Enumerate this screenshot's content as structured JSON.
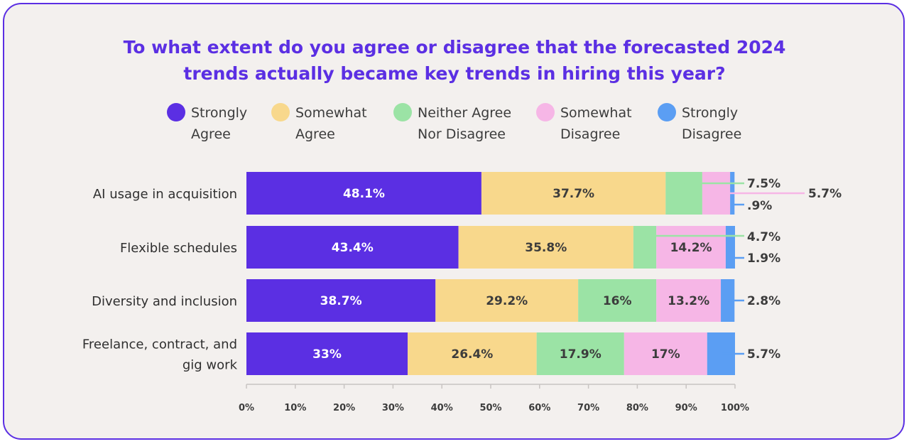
{
  "chart_data": {
    "type": "bar",
    "orientation": "horizontal",
    "stacked": true,
    "title_lines": [
      "To what extent do you agree or disagree that the forecasted 2024",
      "trends actually became key trends in hiring this year?"
    ],
    "categories": [
      [
        "AI usage in acquisition"
      ],
      [
        "Flexible schedules"
      ],
      [
        "Diversity and inclusion"
      ],
      [
        "Freelance, contract, and",
        "gig work"
      ]
    ],
    "series": [
      {
        "name": "Strongly Agree",
        "legend_lines": [
          "Strongly",
          "Agree"
        ],
        "color": "#5b2fe3",
        "values": [
          48.1,
          43.4,
          38.7,
          33
        ]
      },
      {
        "name": "Somewhat Agree",
        "legend_lines": [
          "Somewhat",
          "Agree"
        ],
        "color": "#f8d88c",
        "values": [
          37.7,
          35.8,
          29.2,
          26.4
        ]
      },
      {
        "name": "Neither Agree Nor Disagree",
        "legend_lines": [
          "Neither Agree",
          "Nor Disagree"
        ],
        "color": "#9be3a5",
        "values": [
          7.5,
          4.7,
          16,
          17.9
        ]
      },
      {
        "name": "Somewhat Disagree",
        "legend_lines": [
          "Somewhat",
          "Disagree"
        ],
        "color": "#f6b6e6",
        "values": [
          5.7,
          14.2,
          13.2,
          17
        ]
      },
      {
        "name": "Strongly Disagree",
        "legend_lines": [
          "Strongly",
          "Disagree"
        ],
        "color": "#5b9ef3",
        "values": [
          0.9,
          1.9,
          2.8,
          5.7
        ]
      }
    ],
    "labels": [
      [
        "48.1%",
        "37.7%",
        "7.5%",
        "5.7%",
        ".9%"
      ],
      [
        "43.4%",
        "35.8%",
        "4.7%",
        "14.2%",
        "1.9%"
      ],
      [
        "38.7%",
        "29.2%",
        "16%",
        "13.2%",
        "2.8%"
      ],
      [
        "33%",
        "26.4%",
        "17.9%",
        "17%",
        "5.7%"
      ]
    ],
    "x_ticks": [
      0,
      10,
      20,
      30,
      40,
      50,
      60,
      70,
      80,
      90,
      100
    ],
    "x_tick_labels": [
      "0%",
      "10%",
      "20%",
      "30%",
      "40%",
      "50%",
      "60%",
      "70%",
      "80%",
      "90%",
      "100%"
    ],
    "xlim": [
      0,
      100
    ],
    "legend_position": "top",
    "grid": false
  }
}
